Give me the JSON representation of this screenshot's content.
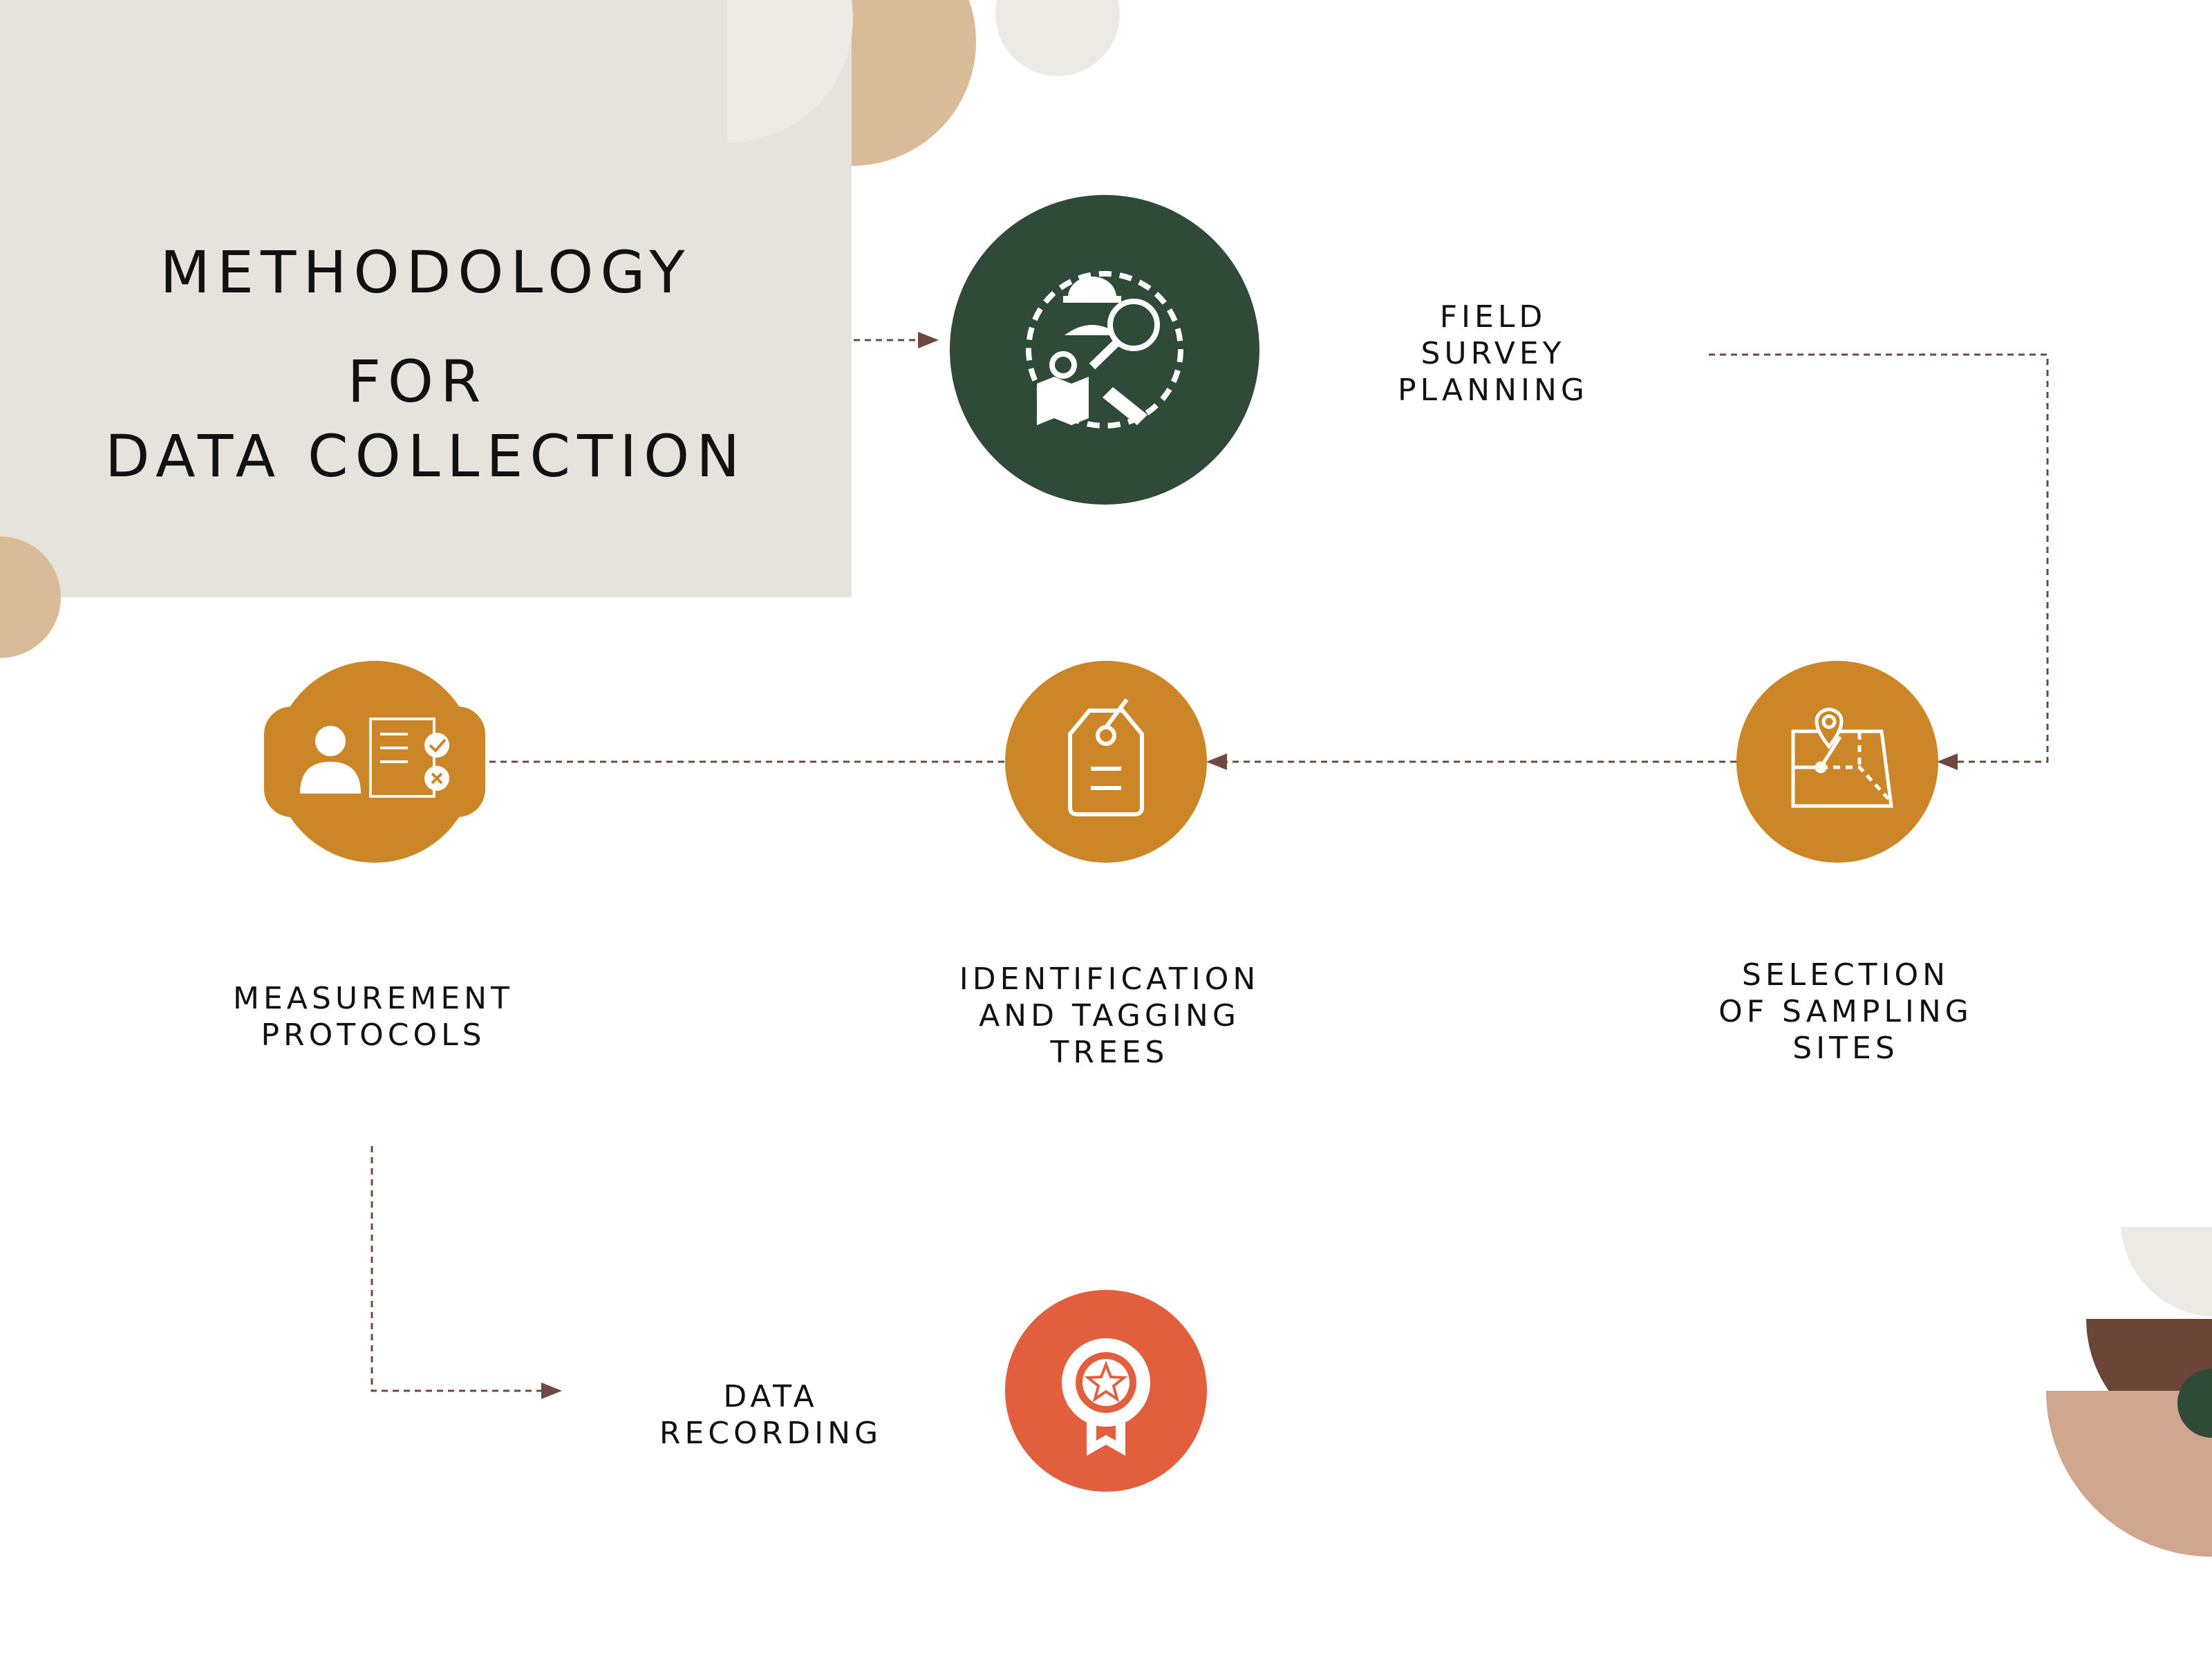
{
  "title": {
    "line1": "METHODOLOGY",
    "line2": "FOR",
    "line3": "DATA COLLECTION"
  },
  "steps": [
    {
      "id": "field-survey-planning",
      "lines": [
        "FIELD",
        "SURVEY",
        "PLANNING"
      ],
      "color": "#304a38",
      "icon": "field-survey-icon"
    },
    {
      "id": "selection-of-sampling-sites",
      "lines": [
        "SELECTION",
        "OF SAMPLING",
        "SITES"
      ],
      "color": "#cd8627",
      "icon": "map-pin-icon"
    },
    {
      "id": "identification-and-tagging-trees",
      "lines": [
        "IDENTIFICATION",
        "AND TAGGING",
        "TREES"
      ],
      "color": "#cd8627",
      "icon": "tag-icon"
    },
    {
      "id": "measurement-protocols",
      "lines": [
        "MEASUREMENT",
        "PROTOCOLS"
      ],
      "color": "#cd8627",
      "icon": "checklist-person-icon"
    },
    {
      "id": "data-recording",
      "lines": [
        "DATA",
        "RECORDING"
      ],
      "color": "#e25f3d",
      "icon": "award-badge-icon"
    }
  ],
  "colors": {
    "panel": "#e6e2dc",
    "tan": "#d9bc97",
    "light": "#edeae6",
    "brown": "#6a4538",
    "pink": "#d0a68e",
    "connector": "#6e4a3e"
  }
}
